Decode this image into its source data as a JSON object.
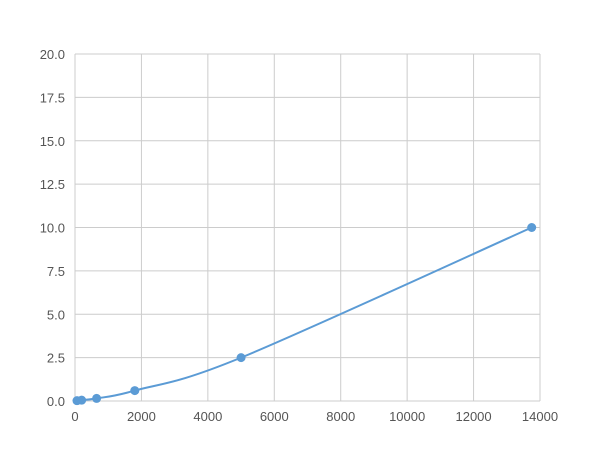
{
  "chart_data": {
    "type": "line",
    "title": "",
    "xlabel": "",
    "ylabel": "",
    "xlim": [
      0,
      14000
    ],
    "ylim": [
      0,
      20
    ],
    "x_ticks": [
      0,
      2000,
      4000,
      6000,
      8000,
      10000,
      12000,
      14000
    ],
    "x_tick_labels": [
      "0",
      "2000",
      "4000",
      "6000",
      "8000",
      "10000",
      "12000",
      "14000"
    ],
    "y_ticks": [
      0,
      2.5,
      5,
      7.5,
      10,
      12.5,
      15,
      17.5,
      20
    ],
    "y_tick_labels": [
      "0.0",
      "2.5",
      "5.0",
      "7.5",
      "10.0",
      "12.5",
      "15.0",
      "17.5",
      "20.0"
    ],
    "grid": true,
    "series": [
      {
        "color": "#5b9bd5",
        "smooth": true,
        "x": [
          60,
          200,
          650,
          1800,
          5000,
          13750
        ],
        "y": [
          0.02,
          0.05,
          0.15,
          0.6,
          2.5,
          10
        ]
      }
    ]
  }
}
